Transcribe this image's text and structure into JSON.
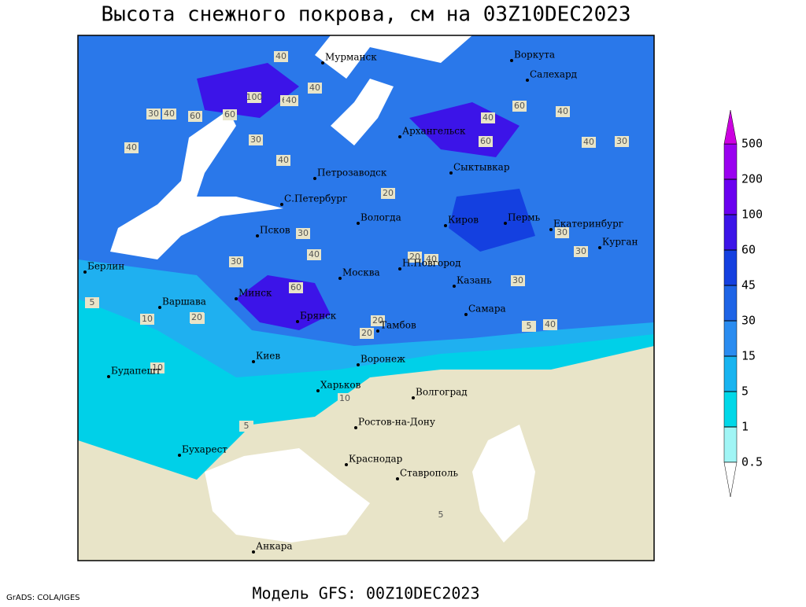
{
  "title": "Высота снежного покрова, см на 03Z10DEC2023",
  "footer": {
    "credit": "GrADS: COLA/IGES",
    "model": "Модель GFS: 00Z10DEC2023"
  },
  "cities": [
    "Мурманск",
    "Воркута",
    "Салехард",
    "Архангельск",
    "Петрозаводск",
    "Сыктывкар",
    "С.Петербург",
    "Вологда",
    "Киров",
    "Пермь",
    "Екатеринбург",
    "Курган",
    "Псков",
    "Берлин",
    "Н.Новгород",
    "Москва",
    "Казань",
    "Минск",
    "Варшава",
    "Самара",
    "Брянск",
    "Тамбов",
    "Киев",
    "Воронеж",
    "Будапешт",
    "Харьков",
    "Волгоград",
    "Ростов-на-Дону",
    "Бухарест",
    "Краснодар",
    "Ставрополь",
    "Анкара"
  ],
  "contour_labels": [
    40,
    60,
    40,
    100,
    40,
    60,
    30,
    60,
    40,
    30,
    40,
    40,
    30,
    20,
    20,
    40,
    60,
    40,
    60,
    40,
    30,
    40,
    30,
    40,
    30,
    20,
    20,
    30,
    60,
    30,
    10,
    20,
    20,
    10,
    5,
    5,
    5,
    10,
    5,
    40
  ],
  "colorbar": {
    "levels": [
      0.5,
      1,
      5,
      15,
      30,
      45,
      60,
      100,
      200,
      500
    ],
    "colors": [
      "#ffffff",
      "#a0f5f5",
      "#00d8e8",
      "#18b4f0",
      "#2a8cf0",
      "#1e64e6",
      "#1440e0",
      "#3c14e8",
      "#6a00f0",
      "#9a00f0",
      "#cc00e0"
    ]
  }
}
